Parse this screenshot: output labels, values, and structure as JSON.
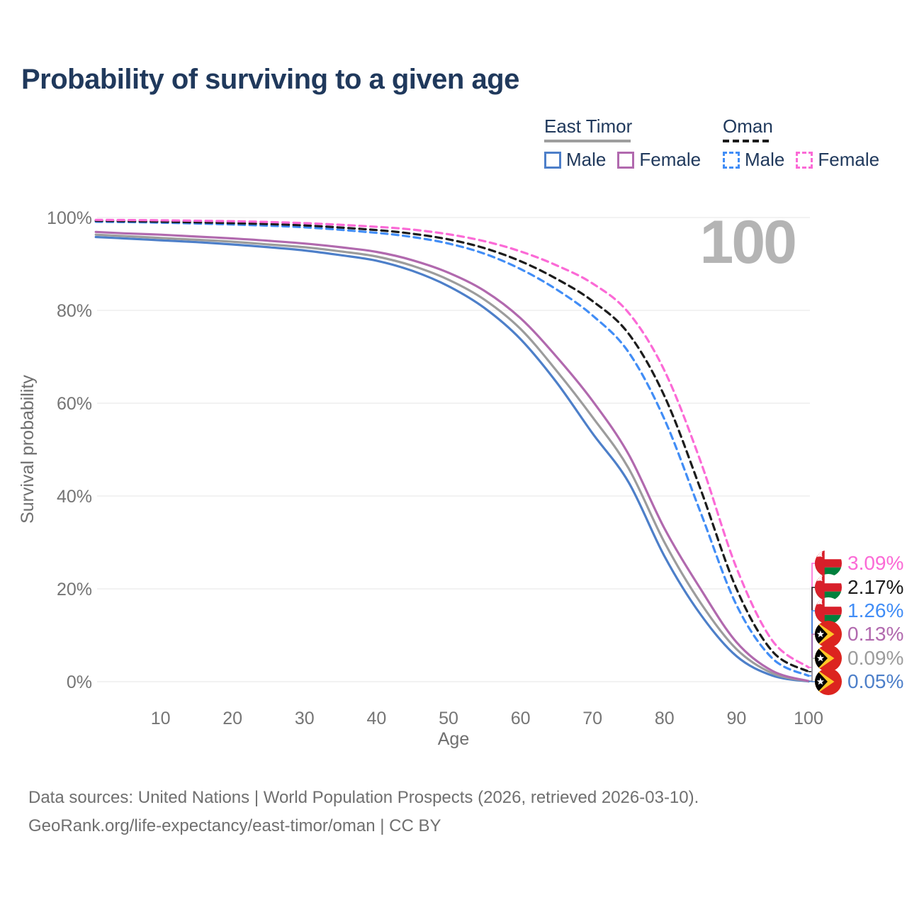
{
  "title": "Probability of surviving to a given age",
  "watermark": "100",
  "legend": {
    "groups": [
      {
        "label": "East Timor",
        "line_style": "solid",
        "underline_color": "#9e9e9e",
        "items": [
          {
            "label": "Male",
            "color": "#4d7fc9"
          },
          {
            "label": "Female",
            "color": "#b169ae"
          }
        ]
      },
      {
        "label": "Oman",
        "line_style": "dashed",
        "underline_color": "#1a1a1a",
        "items": [
          {
            "label": "Male",
            "color": "#418df6"
          },
          {
            "label": "Female",
            "color": "#fb6ad6"
          }
        ]
      }
    ]
  },
  "chart_data": {
    "type": "line",
    "title": "Probability of surviving to a given age",
    "xlabel": "Age",
    "ylabel": "Survival probability",
    "xlim": [
      0,
      100
    ],
    "ylim": [
      0,
      100
    ],
    "grid": "horizontal",
    "xticks": [
      10,
      20,
      30,
      40,
      50,
      60,
      70,
      80,
      90,
      100
    ],
    "yticks": [
      {
        "value": 0,
        "label": "0%"
      },
      {
        "value": 20,
        "label": "20%"
      },
      {
        "value": 40,
        "label": "40%"
      },
      {
        "value": 60,
        "label": "60%"
      },
      {
        "value": 80,
        "label": "80%"
      },
      {
        "value": 100,
        "label": "100%"
      }
    ],
    "series": [
      {
        "name": "East Timor Male",
        "country": "East Timor",
        "sex": "Male",
        "color": "#4d7fc9",
        "dashed": false,
        "end_label": "0.05%",
        "points": [
          [
            1,
            95.8
          ],
          [
            5,
            95.5
          ],
          [
            10,
            95.1
          ],
          [
            15,
            94.7
          ],
          [
            20,
            94.2
          ],
          [
            25,
            93.6
          ],
          [
            30,
            92.9
          ],
          [
            35,
            91.9
          ],
          [
            40,
            90.7
          ],
          [
            45,
            88.5
          ],
          [
            50,
            85.2
          ],
          [
            55,
            80.5
          ],
          [
            60,
            73.8
          ],
          [
            65,
            64.5
          ],
          [
            70,
            53.5
          ],
          [
            75,
            43.0
          ],
          [
            80,
            27.0
          ],
          [
            85,
            14.5
          ],
          [
            90,
            5.5
          ],
          [
            95,
            1.3
          ],
          [
            100,
            0.05
          ]
        ]
      },
      {
        "name": "East Timor Both sexes",
        "country": "East Timor",
        "sex": "Both",
        "color": "#9c9c9c",
        "dashed": false,
        "end_label": "0.09%",
        "points": [
          [
            1,
            96.3
          ],
          [
            5,
            96.0
          ],
          [
            10,
            95.6
          ],
          [
            15,
            95.2
          ],
          [
            20,
            94.8
          ],
          [
            25,
            94.2
          ],
          [
            30,
            93.6
          ],
          [
            35,
            92.7
          ],
          [
            40,
            91.6
          ],
          [
            45,
            89.6
          ],
          [
            50,
            86.6
          ],
          [
            55,
            82.3
          ],
          [
            60,
            76.0
          ],
          [
            65,
            67.0
          ],
          [
            70,
            57.0
          ],
          [
            75,
            46.0
          ],
          [
            80,
            30.0
          ],
          [
            85,
            17.0
          ],
          [
            90,
            7.0
          ],
          [
            95,
            1.8
          ],
          [
            100,
            0.09
          ]
        ]
      },
      {
        "name": "East Timor Female",
        "country": "East Timor",
        "sex": "Female",
        "color": "#b169ae",
        "dashed": false,
        "end_label": "0.13%",
        "points": [
          [
            1,
            96.9
          ],
          [
            5,
            96.6
          ],
          [
            10,
            96.3
          ],
          [
            15,
            95.9
          ],
          [
            20,
            95.5
          ],
          [
            25,
            95.0
          ],
          [
            30,
            94.4
          ],
          [
            35,
            93.6
          ],
          [
            40,
            92.6
          ],
          [
            45,
            90.8
          ],
          [
            50,
            88.1
          ],
          [
            55,
            84.2
          ],
          [
            60,
            78.3
          ],
          [
            65,
            70.0
          ],
          [
            70,
            60.5
          ],
          [
            75,
            49.0
          ],
          [
            80,
            33.0
          ],
          [
            85,
            20.0
          ],
          [
            90,
            8.5
          ],
          [
            95,
            2.3
          ],
          [
            100,
            0.13
          ]
        ]
      },
      {
        "name": "Oman Male",
        "country": "Oman",
        "sex": "Male",
        "color": "#418df6",
        "dashed": true,
        "end_label": "1.26%",
        "points": [
          [
            1,
            99.1
          ],
          [
            10,
            98.9
          ],
          [
            20,
            98.5
          ],
          [
            30,
            97.9
          ],
          [
            40,
            96.7
          ],
          [
            45,
            95.8
          ],
          [
            50,
            94.4
          ],
          [
            55,
            92.2
          ],
          [
            60,
            88.9
          ],
          [
            65,
            84.5
          ],
          [
            70,
            78.9
          ],
          [
            75,
            71.0
          ],
          [
            80,
            56.5
          ],
          [
            85,
            36.5
          ],
          [
            90,
            16.5
          ],
          [
            95,
            5.0
          ],
          [
            100,
            1.26
          ]
        ]
      },
      {
        "name": "Oman Both sexes",
        "country": "Oman",
        "sex": "Both",
        "color": "#1c1c1c",
        "dashed": true,
        "end_label": "2.17%",
        "points": [
          [
            1,
            99.3
          ],
          [
            10,
            99.1
          ],
          [
            20,
            98.8
          ],
          [
            30,
            98.3
          ],
          [
            40,
            97.3
          ],
          [
            45,
            96.5
          ],
          [
            50,
            95.3
          ],
          [
            55,
            93.4
          ],
          [
            60,
            90.6
          ],
          [
            65,
            86.8
          ],
          [
            70,
            82.0
          ],
          [
            75,
            75.0
          ],
          [
            80,
            61.5
          ],
          [
            85,
            41.5
          ],
          [
            90,
            20.0
          ],
          [
            95,
            6.5
          ],
          [
            100,
            2.17
          ]
        ]
      },
      {
        "name": "Oman Female",
        "country": "Oman",
        "sex": "Female",
        "color": "#fb6ad6",
        "dashed": true,
        "end_label": "3.09%",
        "points": [
          [
            1,
            99.5
          ],
          [
            10,
            99.4
          ],
          [
            20,
            99.2
          ],
          [
            30,
            98.8
          ],
          [
            40,
            98.0
          ],
          [
            45,
            97.4
          ],
          [
            50,
            96.4
          ],
          [
            55,
            94.9
          ],
          [
            60,
            92.7
          ],
          [
            65,
            89.7
          ],
          [
            70,
            85.8
          ],
          [
            75,
            79.5
          ],
          [
            80,
            67.0
          ],
          [
            85,
            47.5
          ],
          [
            90,
            24.5
          ],
          [
            95,
            8.8
          ],
          [
            100,
            3.09
          ]
        ]
      }
    ]
  },
  "footer": {
    "line1": "Data sources: United Nations | World Population Prospects (2026, retrieved 2026-03-10).",
    "line2": "GeoRank.org/life-expectancy/east-timor/oman | CC BY"
  }
}
